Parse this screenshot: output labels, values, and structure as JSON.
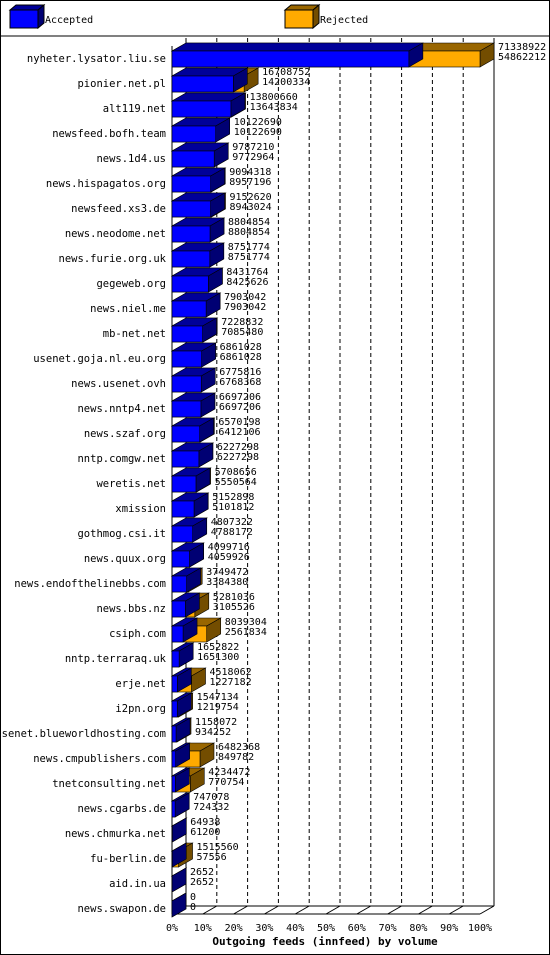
{
  "chart_data": {
    "type": "bar",
    "orientation": "horizontal",
    "overlap": true,
    "title": "Outgoing feeds (innfeed) by volume",
    "categories": [
      "nyheter.lysator.liu.se",
      "pionier.net.pl",
      "alt119.net",
      "newsfeed.bofh.team",
      "news.1d4.us",
      "news.hispagatos.org",
      "newsfeed.xs3.de",
      "news.neodome.net",
      "news.furie.org.uk",
      "gegeweb.org",
      "news.niel.me",
      "mb-net.net",
      "usenet.goja.nl.eu.org",
      "news.usenet.ovh",
      "news.nntp4.net",
      "news.szaf.org",
      "nntp.comgw.net",
      "weretis.net",
      "xmission",
      "gothmog.csi.it",
      "news.quux.org",
      "news.endofthelinebbs.com",
      "news.bbs.nz",
      "csiph.com",
      "nntp.terraraq.uk",
      "erje.net",
      "i2pn.org",
      "usenet.blueworldhosting.com",
      "news.cmpublishers.com",
      "tnetconsulting.net",
      "news.cgarbs.de",
      "news.chmurka.net",
      "fu-berlin.de",
      "aid.in.ua",
      "news.swapon.de"
    ],
    "series": [
      {
        "name": "Accepted",
        "color": "#0000ff",
        "values": [
          54862212,
          14200334,
          13643834,
          10122690,
          9772964,
          8957196,
          8943024,
          8804854,
          8751774,
          8425626,
          7903042,
          7085480,
          6861028,
          6768368,
          6697206,
          6412106,
          6227298,
          5550564,
          5101812,
          4788172,
          4059926,
          3384380,
          3105526,
          2561834,
          1651300,
          1227182,
          1219754,
          934252,
          849782,
          770754,
          724332,
          61200,
          57556,
          2652,
          0
        ]
      },
      {
        "name": "Rejected",
        "color": "#ffaa00",
        "values": [
          71338922,
          16708752,
          13800660,
          10122690,
          9787210,
          9094318,
          9152620,
          8804854,
          8751774,
          8431764,
          7903042,
          7228832,
          6861028,
          6775816,
          6697206,
          6570198,
          6227298,
          5708656,
          5152898,
          4807322,
          4099716,
          3749472,
          5281036,
          8039304,
          1652822,
          4518062,
          1547134,
          1158072,
          6482368,
          4234472,
          747078,
          64938,
          1515560,
          2652,
          0
        ]
      }
    ],
    "xlim": [
      0,
      71338922
    ],
    "xticks": [
      {
        "value": 0,
        "label": "0%"
      },
      {
        "value": 7133892.2,
        "label": "10%"
      },
      {
        "value": 14267784.4,
        "label": "20%"
      },
      {
        "value": 21401676.6,
        "label": "30%"
      },
      {
        "value": 28535568.8,
        "label": "40%"
      },
      {
        "value": 35669461,
        "label": "50%"
      },
      {
        "value": 42803353.2,
        "label": "60%"
      },
      {
        "value": 49937245.4,
        "label": "70%"
      },
      {
        "value": 57071137.6,
        "label": "80%"
      },
      {
        "value": 64205029.8,
        "label": "90%"
      },
      {
        "value": 71338922,
        "label": "100%"
      }
    ],
    "grid": true
  }
}
